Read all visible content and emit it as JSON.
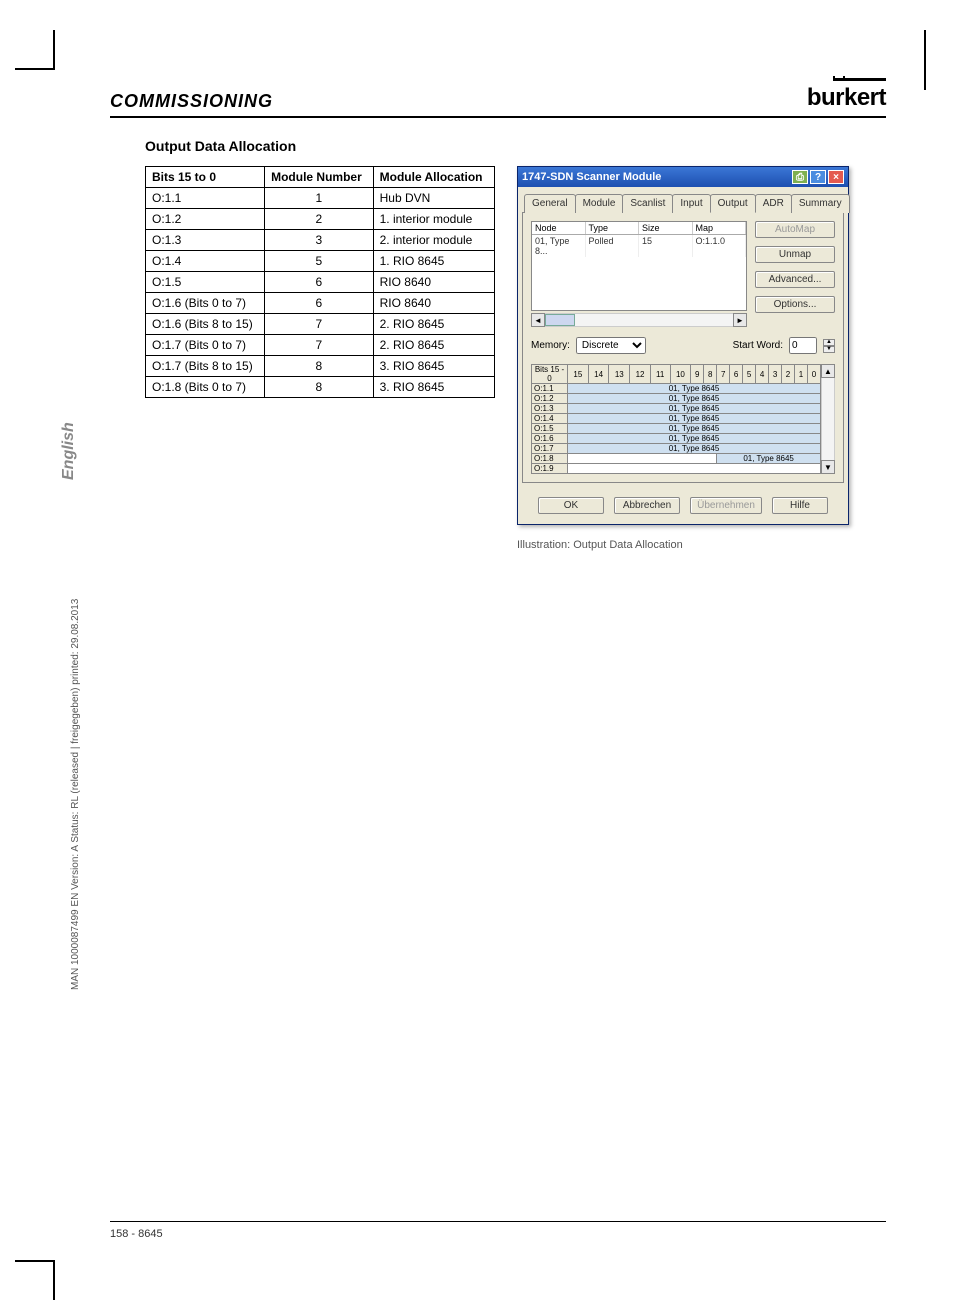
{
  "header": {
    "section": "COMMISSIONING",
    "logo": "burkert"
  },
  "subheading": "Output Data Allocation",
  "table": {
    "columns": [
      "Bits 15 to 0",
      "Module Number",
      "Module Allocation"
    ],
    "rows": [
      [
        "O:1.1",
        "1",
        "Hub DVN"
      ],
      [
        "O:1.2",
        "2",
        "1. interior module"
      ],
      [
        "O:1.3",
        "3",
        "2. interior module"
      ],
      [
        "O:1.4",
        "5",
        "1. RIO 8645"
      ],
      [
        "O:1.5",
        "6",
        "RIO 8640"
      ],
      [
        "O:1.6 (Bits 0 to 7)",
        "6",
        "RIO 8640"
      ],
      [
        "O:1.6 (Bits 8 to 15)",
        "7",
        "2. RIO 8645"
      ],
      [
        "O:1.7 (Bits 0 to 7)",
        "7",
        "2. RIO 8645"
      ],
      [
        "O:1.7 (Bits 8 to 15)",
        "8",
        "3. RIO 8645"
      ],
      [
        "O:1.8 (Bits 0 to 7)",
        "8",
        "3. RIO 8645"
      ]
    ]
  },
  "dialog": {
    "title": "1747-SDN Scanner Module",
    "tabs": [
      "General",
      "Module",
      "Scanlist",
      "Input",
      "Output",
      "ADR",
      "Summary"
    ],
    "active_tab": "Output",
    "node": {
      "headers": [
        "Node",
        "Type",
        "Size",
        "Map"
      ],
      "row": [
        "01, Type 8...",
        "Polled",
        "15",
        "O:1.1.0"
      ]
    },
    "buttons": {
      "automap": "AutoMap",
      "unmap": "Unmap",
      "advanced": "Advanced...",
      "options": "Options..."
    },
    "memory": {
      "label": "Memory:",
      "value": "Discrete",
      "startword_label": "Start Word:",
      "startword_value": "0"
    },
    "bitmap": {
      "header_label": "Bits 15 - 0",
      "bit_cols": [
        "15",
        "14",
        "13",
        "12",
        "11",
        "10",
        "9",
        "8",
        "7",
        "6",
        "5",
        "4",
        "3",
        "2",
        "1",
        "0"
      ],
      "rows": [
        {
          "label": "O:1.1",
          "text": "01, Type 8645",
          "half": false
        },
        {
          "label": "O:1.2",
          "text": "01, Type 8645",
          "half": false
        },
        {
          "label": "O:1.3",
          "text": "01, Type 8645",
          "half": false
        },
        {
          "label": "O:1.4",
          "text": "01, Type 8645",
          "half": false
        },
        {
          "label": "O:1.5",
          "text": "01, Type 8645",
          "half": false
        },
        {
          "label": "O:1.6",
          "text": "01, Type 8645",
          "half": false
        },
        {
          "label": "O:1.7",
          "text": "01, Type 8645",
          "half": false
        },
        {
          "label": "O:1.8",
          "text": "01, Type 8645",
          "half": true
        },
        {
          "label": "O:1.9",
          "text": "",
          "half": false
        }
      ]
    },
    "footer": {
      "ok": "OK",
      "cancel": "Abbrechen",
      "apply": "Übernehmen",
      "help": "Hilfe"
    }
  },
  "caption": "Illustration: Output Data Allocation",
  "side": {
    "lang": "English",
    "meta": "MAN  1000087499  EN  Version: A   Status: RL (released | freigegeben)  printed: 29.08.2013"
  },
  "footer": "158  -  8645"
}
